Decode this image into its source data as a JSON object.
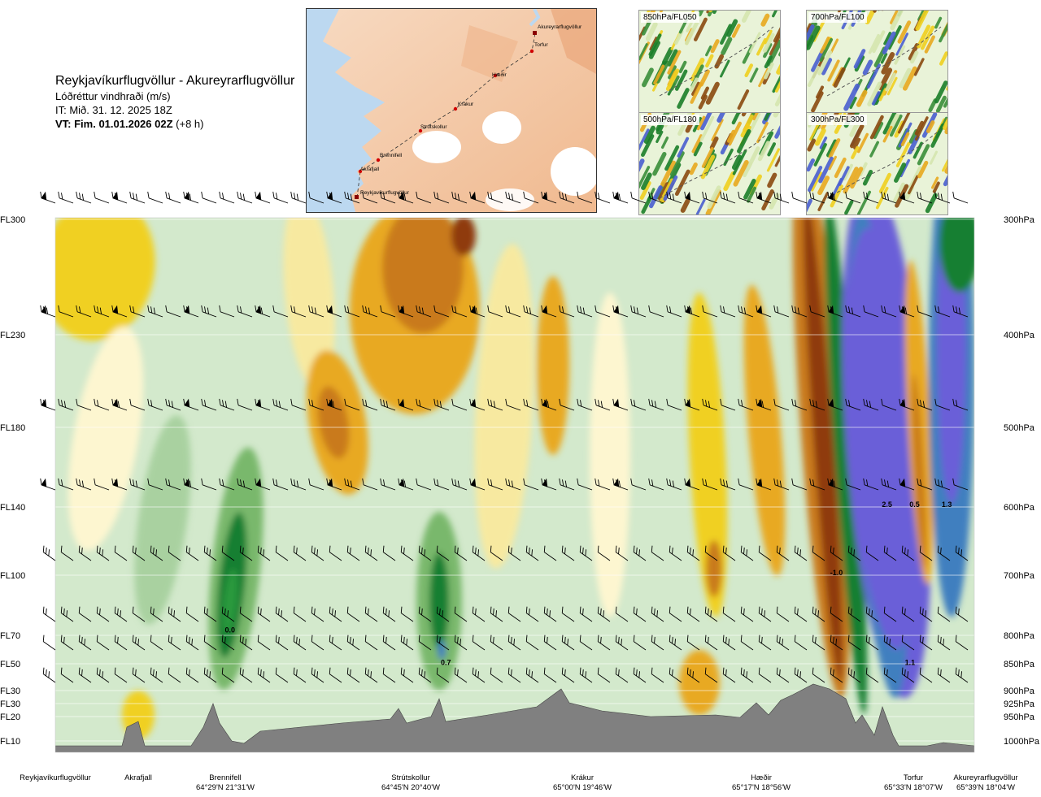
{
  "header": {
    "route": "Reykjavíkurflugvöllur - Akureyrarflugvöllur",
    "parameter": "Lóðréttur vindhraði (m/s)",
    "issue_time": "IT: Mið. 31. 12. 2025 18Z",
    "valid_time_bold": "VT: Fim. 01.01.2026 02Z",
    "valid_time_offset": "(+8 h)"
  },
  "thumbnails": [
    {
      "label": "850hPa/FL050"
    },
    {
      "label": "700hPa/FL100"
    },
    {
      "label": "500hPa/FL180"
    },
    {
      "label": "300hPa/FL300"
    }
  ],
  "route_map": {
    "waypoints": [
      "Akureyrarflugvöllur",
      "Torfur",
      "Hæðir",
      "Krákur",
      "Strútskollur",
      "Brennifell",
      "Akrafjall",
      "Reykjavíkurflugvöllur"
    ]
  },
  "chart_data": {
    "type": "heatmap",
    "title": "Lóðréttur vindhraði (m/s)",
    "xlabel": "",
    "ylabel": "",
    "left_levels": [
      {
        "label": "FL300",
        "hpa": 300
      },
      {
        "label": "FL230",
        "hpa": 400
      },
      {
        "label": "FL180",
        "hpa": 500
      },
      {
        "label": "FL140",
        "hpa": 600
      },
      {
        "label": "FL100",
        "hpa": 700
      },
      {
        "label": "FL70",
        "hpa": 800
      },
      {
        "label": "FL50",
        "hpa": 850
      },
      {
        "label": "FL30",
        "hpa": 900
      },
      {
        "label": "FL30",
        "hpa": 925
      },
      {
        "label": "FL20",
        "hpa": 950
      },
      {
        "label": "FL10",
        "hpa": 1000
      }
    ],
    "right_levels": [
      "300hPa",
      "400hPa",
      "500hPa",
      "600hPa",
      "700hPa",
      "800hPa",
      "850hPa",
      "900hPa",
      "925hPa",
      "950hPa",
      "1000hPa"
    ],
    "x_range": [
      0,
      100
    ],
    "y_range_hpa": [
      300,
      1000
    ],
    "places": [
      {
        "name": "Reykjavíkurflugvöllur",
        "coord": "",
        "x": 3
      },
      {
        "name": "Akrafjall",
        "coord": "",
        "x": 9
      },
      {
        "name": "Brennifell",
        "coord": "64°29'N 21°31'W",
        "x": 19
      },
      {
        "name": "Strútskollur",
        "coord": "64°45'N 20°40'W",
        "x": 38
      },
      {
        "name": "Krákur",
        "coord": "65°00'N 19°46'W",
        "x": 57
      },
      {
        "name": "Hæðir",
        "coord": "65°17'N 18°56'W",
        "x": 75
      },
      {
        "name": "Torfur",
        "coord": "65°33'N 18°07'W",
        "x": 94
      },
      {
        "name": "Akureyrarflugvöllur",
        "coord": "65°39'N 18°04'W",
        "x": 99
      }
    ],
    "value_labels": [
      {
        "text": "0.0",
        "x": 19,
        "hpa": 795
      },
      {
        "text": "0.7",
        "x": 42.5,
        "hpa": 852
      },
      {
        "text": "-1.0",
        "x": 85,
        "hpa": 700
      },
      {
        "text": "2.5",
        "x": 90.5,
        "hpa": 600
      },
      {
        "text": "0.5",
        "x": 93.5,
        "hpa": 600
      },
      {
        "text": "1.3",
        "x": 97,
        "hpa": 600
      },
      {
        "text": "1.1",
        "x": 93,
        "hpa": 852
      }
    ],
    "color_scale": [
      "#6a5fd8",
      "#3f7fbf",
      "#127f33",
      "#2c9a3e",
      "#79b86c",
      "#a9d1a0",
      "#d3e9cc",
      "#fdf6d0",
      "#f7e9a0",
      "#f0d020",
      "#e8a920",
      "#c97a1a",
      "#8f3b0c"
    ],
    "terrain_color": "#808080"
  }
}
